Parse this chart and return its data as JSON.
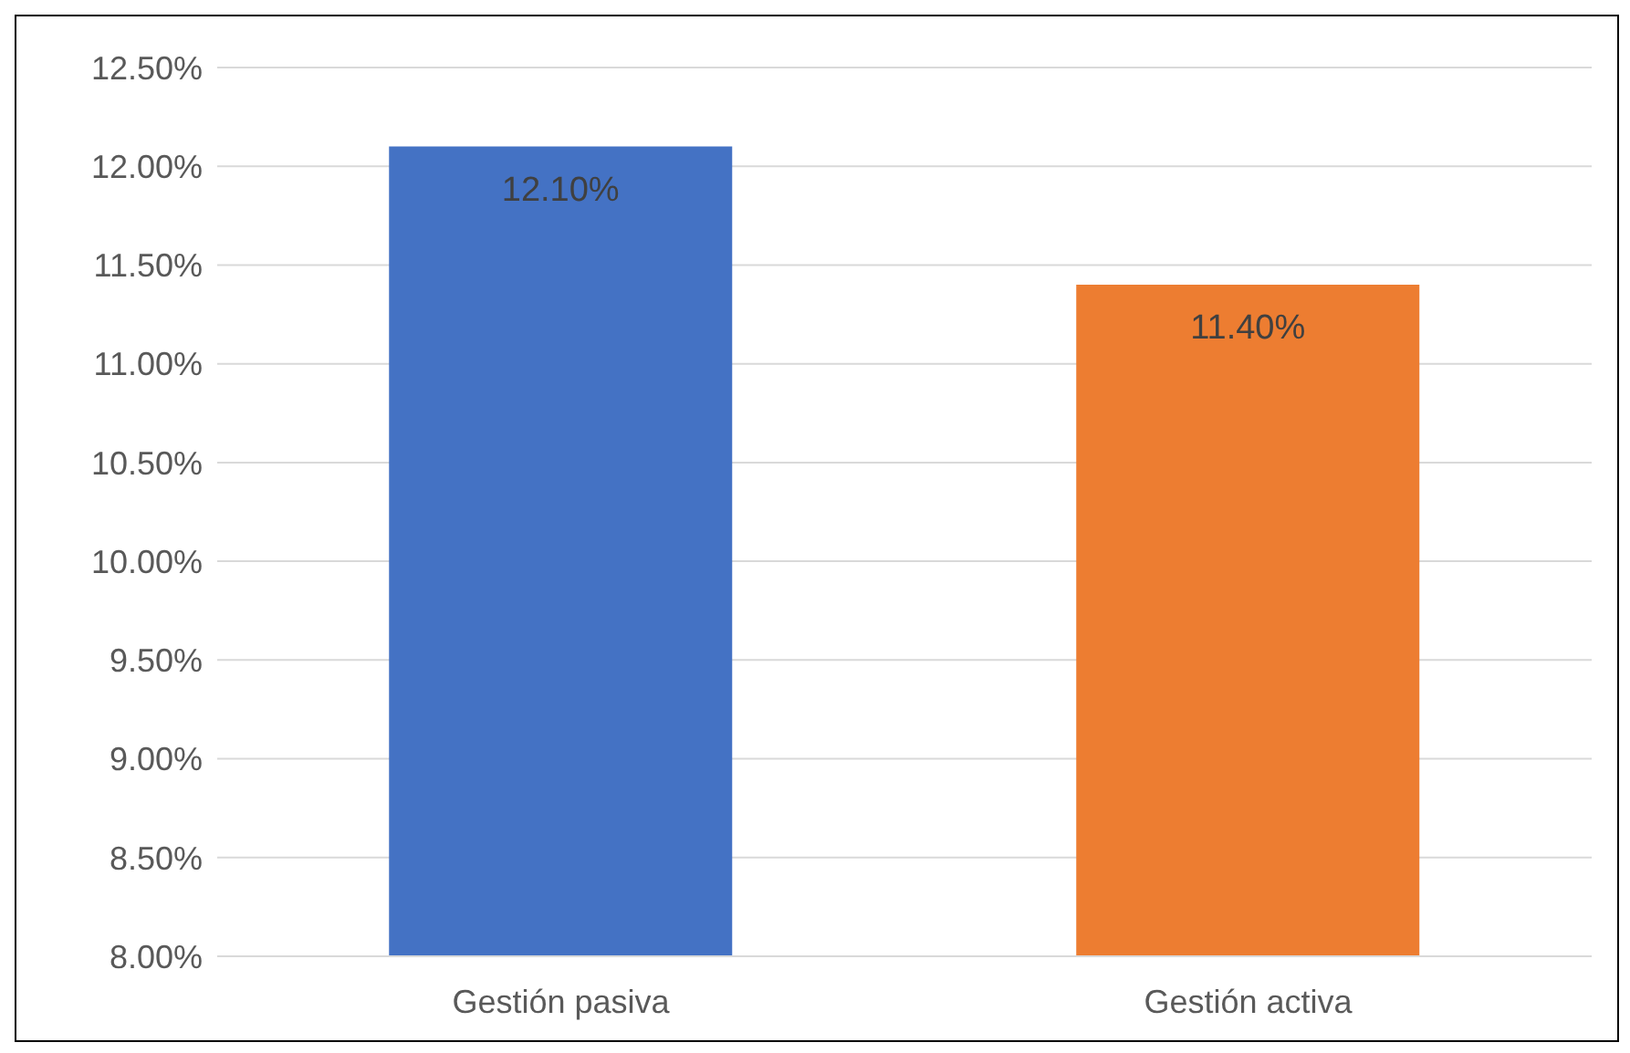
{
  "chart_data": {
    "type": "bar",
    "categories": [
      "Gestión pasiva",
      "Gestión activa"
    ],
    "values": [
      12.1,
      11.4
    ],
    "colors": [
      "#4472c4",
      "#ed7d31"
    ],
    "value_labels": [
      "12.10%",
      "11.40%"
    ],
    "ylim": [
      8,
      12.5
    ],
    "yticks": [
      {
        "value": 8,
        "label": "8.00%"
      },
      {
        "value": 8.5,
        "label": "8.50%"
      },
      {
        "value": 9,
        "label": "9.00%"
      },
      {
        "value": 9.5,
        "label": "9.50%"
      },
      {
        "value": 10,
        "label": "10.00%"
      },
      {
        "value": 10.5,
        "label": "10.50%"
      },
      {
        "value": 11,
        "label": "11.00%"
      },
      {
        "value": 11.5,
        "label": "11.50%"
      },
      {
        "value": 12,
        "label": "12.00%"
      },
      {
        "value": 12.5,
        "label": "12.50%"
      }
    ],
    "grid": "y",
    "legend": false
  }
}
